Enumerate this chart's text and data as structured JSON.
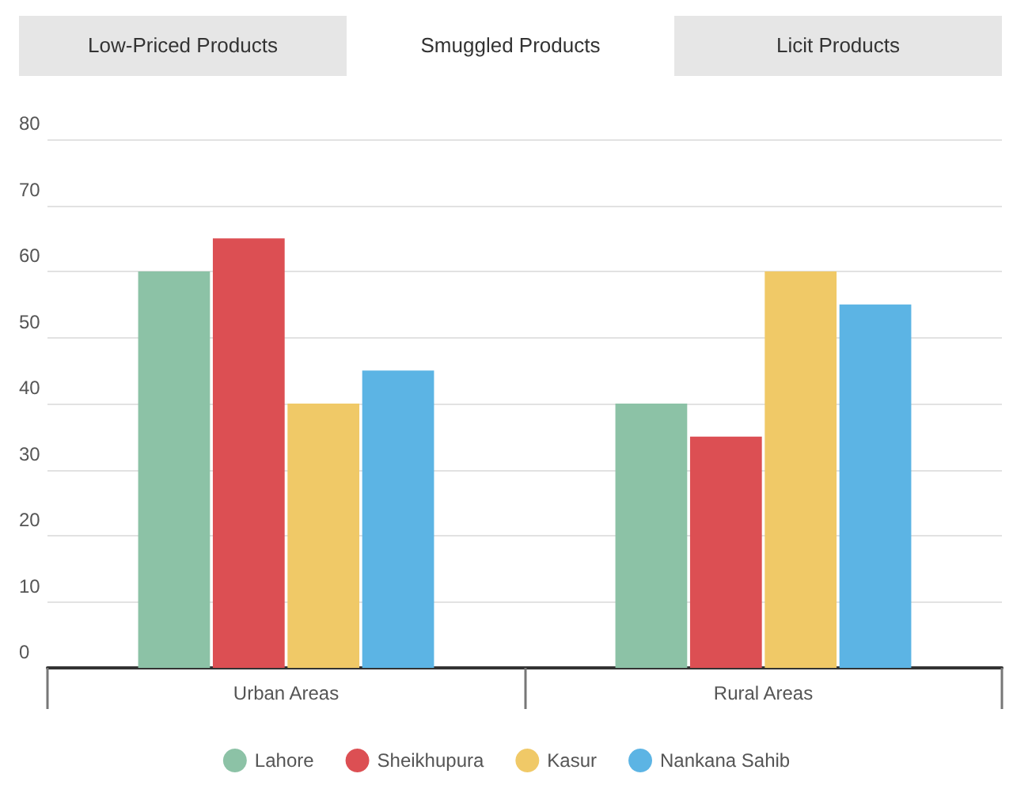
{
  "chart_data": {
    "type": "bar",
    "title": "Smuggled Products",
    "annotations": [
      "Low-Priced Products",
      "Licit Products"
    ],
    "categories": [
      "Urban Areas",
      "Rural Areas"
    ],
    "series": [
      {
        "name": "Lahore",
        "color": "#8cc2a6",
        "values": [
          60,
          40
        ]
      },
      {
        "name": "Sheikhupura",
        "color": "#dc4f53",
        "values": [
          65,
          35
        ]
      },
      {
        "name": "Kasur",
        "color": "#f0c967",
        "values": [
          40,
          60
        ]
      },
      {
        "name": "Nankana Sahib",
        "color": "#5cb4e4",
        "values": [
          45,
          55
        ]
      }
    ],
    "ylim": [
      0,
      80
    ],
    "yticks": [
      0,
      10,
      20,
      30,
      40,
      50,
      60,
      70,
      80
    ],
    "grid": "y",
    "legend": "bottom"
  }
}
